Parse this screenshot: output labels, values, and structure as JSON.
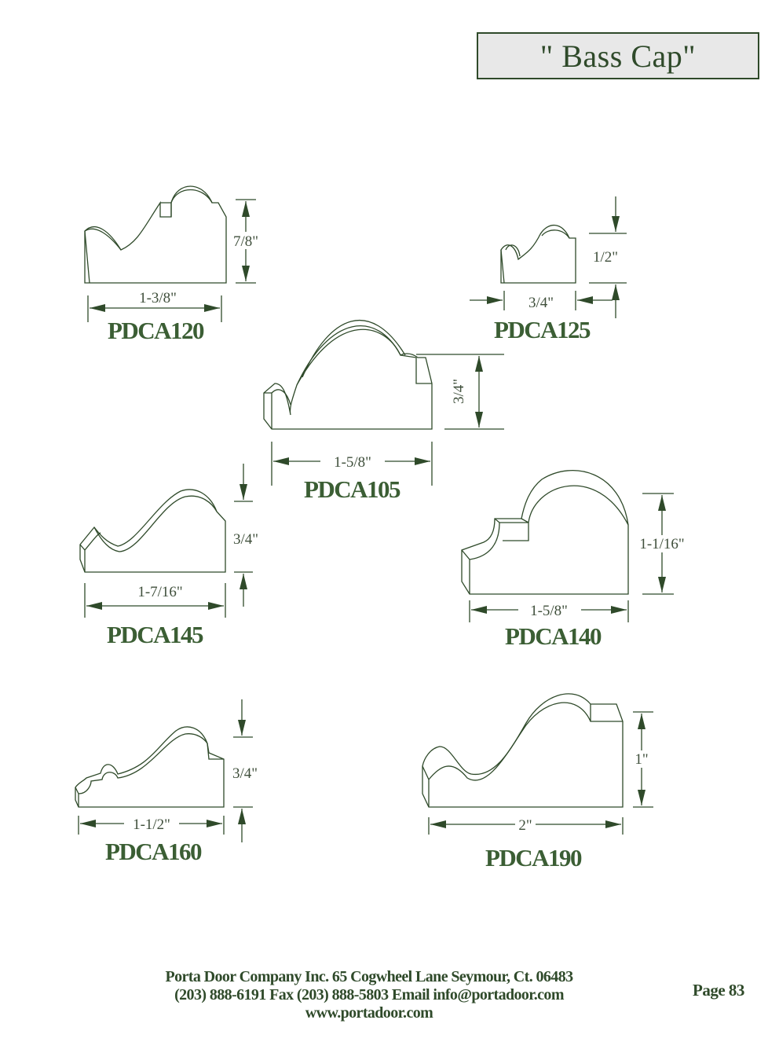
{
  "header": {
    "title": "\" Bass Cap\""
  },
  "profiles": [
    {
      "code": "PDCA120",
      "width": "1-3/8\"",
      "height": "7/8\""
    },
    {
      "code": "PDCA125",
      "width": "3/4\"",
      "height": "1/2\""
    },
    {
      "code": "PDCA105",
      "width": "1-5/8\"",
      "height": "3/4\""
    },
    {
      "code": "PDCA145",
      "width": "1-7/16\"",
      "height": "3/4\""
    },
    {
      "code": "PDCA140",
      "width": "1-5/8\"",
      "height": "1-1/16\""
    },
    {
      "code": "PDCA160",
      "width": "1-1/2\"",
      "height": "3/4\""
    },
    {
      "code": "PDCA190",
      "width": "2\"",
      "height": "1\""
    }
  ],
  "footer": {
    "line1": "Porta Door Company Inc. 65 Cogwheel Lane Seymour, Ct. 06483",
    "line2": "(203) 888-6191 Fax (203) 888-5803 Email info@portadoor.com",
    "line3": "www.portadoor.com",
    "page": "Page 83"
  }
}
